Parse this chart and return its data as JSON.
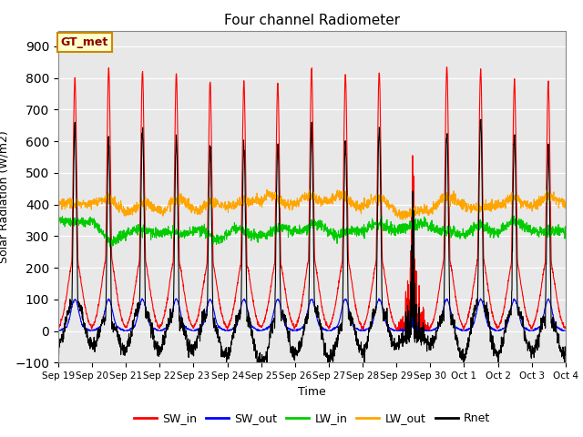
{
  "title": "Four channel Radiometer",
  "xlabel": "Time",
  "ylabel": "Solar Radiation (W/m2)",
  "ylim": [
    -100,
    950
  ],
  "yticks": [
    -100,
    0,
    100,
    200,
    300,
    400,
    500,
    600,
    700,
    800,
    900
  ],
  "date_labels": [
    "Sep 19",
    "Sep 20",
    "Sep 21",
    "Sep 22",
    "Sep 23",
    "Sep 24",
    "Sep 25",
    "Sep 26",
    "Sep 27",
    "Sep 28",
    "Sep 29",
    "Sep 30",
    "Oct 1",
    "Oct 2",
    "Oct 3",
    "Oct 4"
  ],
  "num_days": 15,
  "colors": {
    "SW_in": "#ff0000",
    "SW_out": "#0000ff",
    "LW_in": "#00cc00",
    "LW_out": "#ffa500",
    "Rnet": "#000000"
  },
  "background_color": "#e8e8e8",
  "annotation_text": "GT_met",
  "annotation_bg": "#ffffcc",
  "annotation_border": "#cc8800"
}
